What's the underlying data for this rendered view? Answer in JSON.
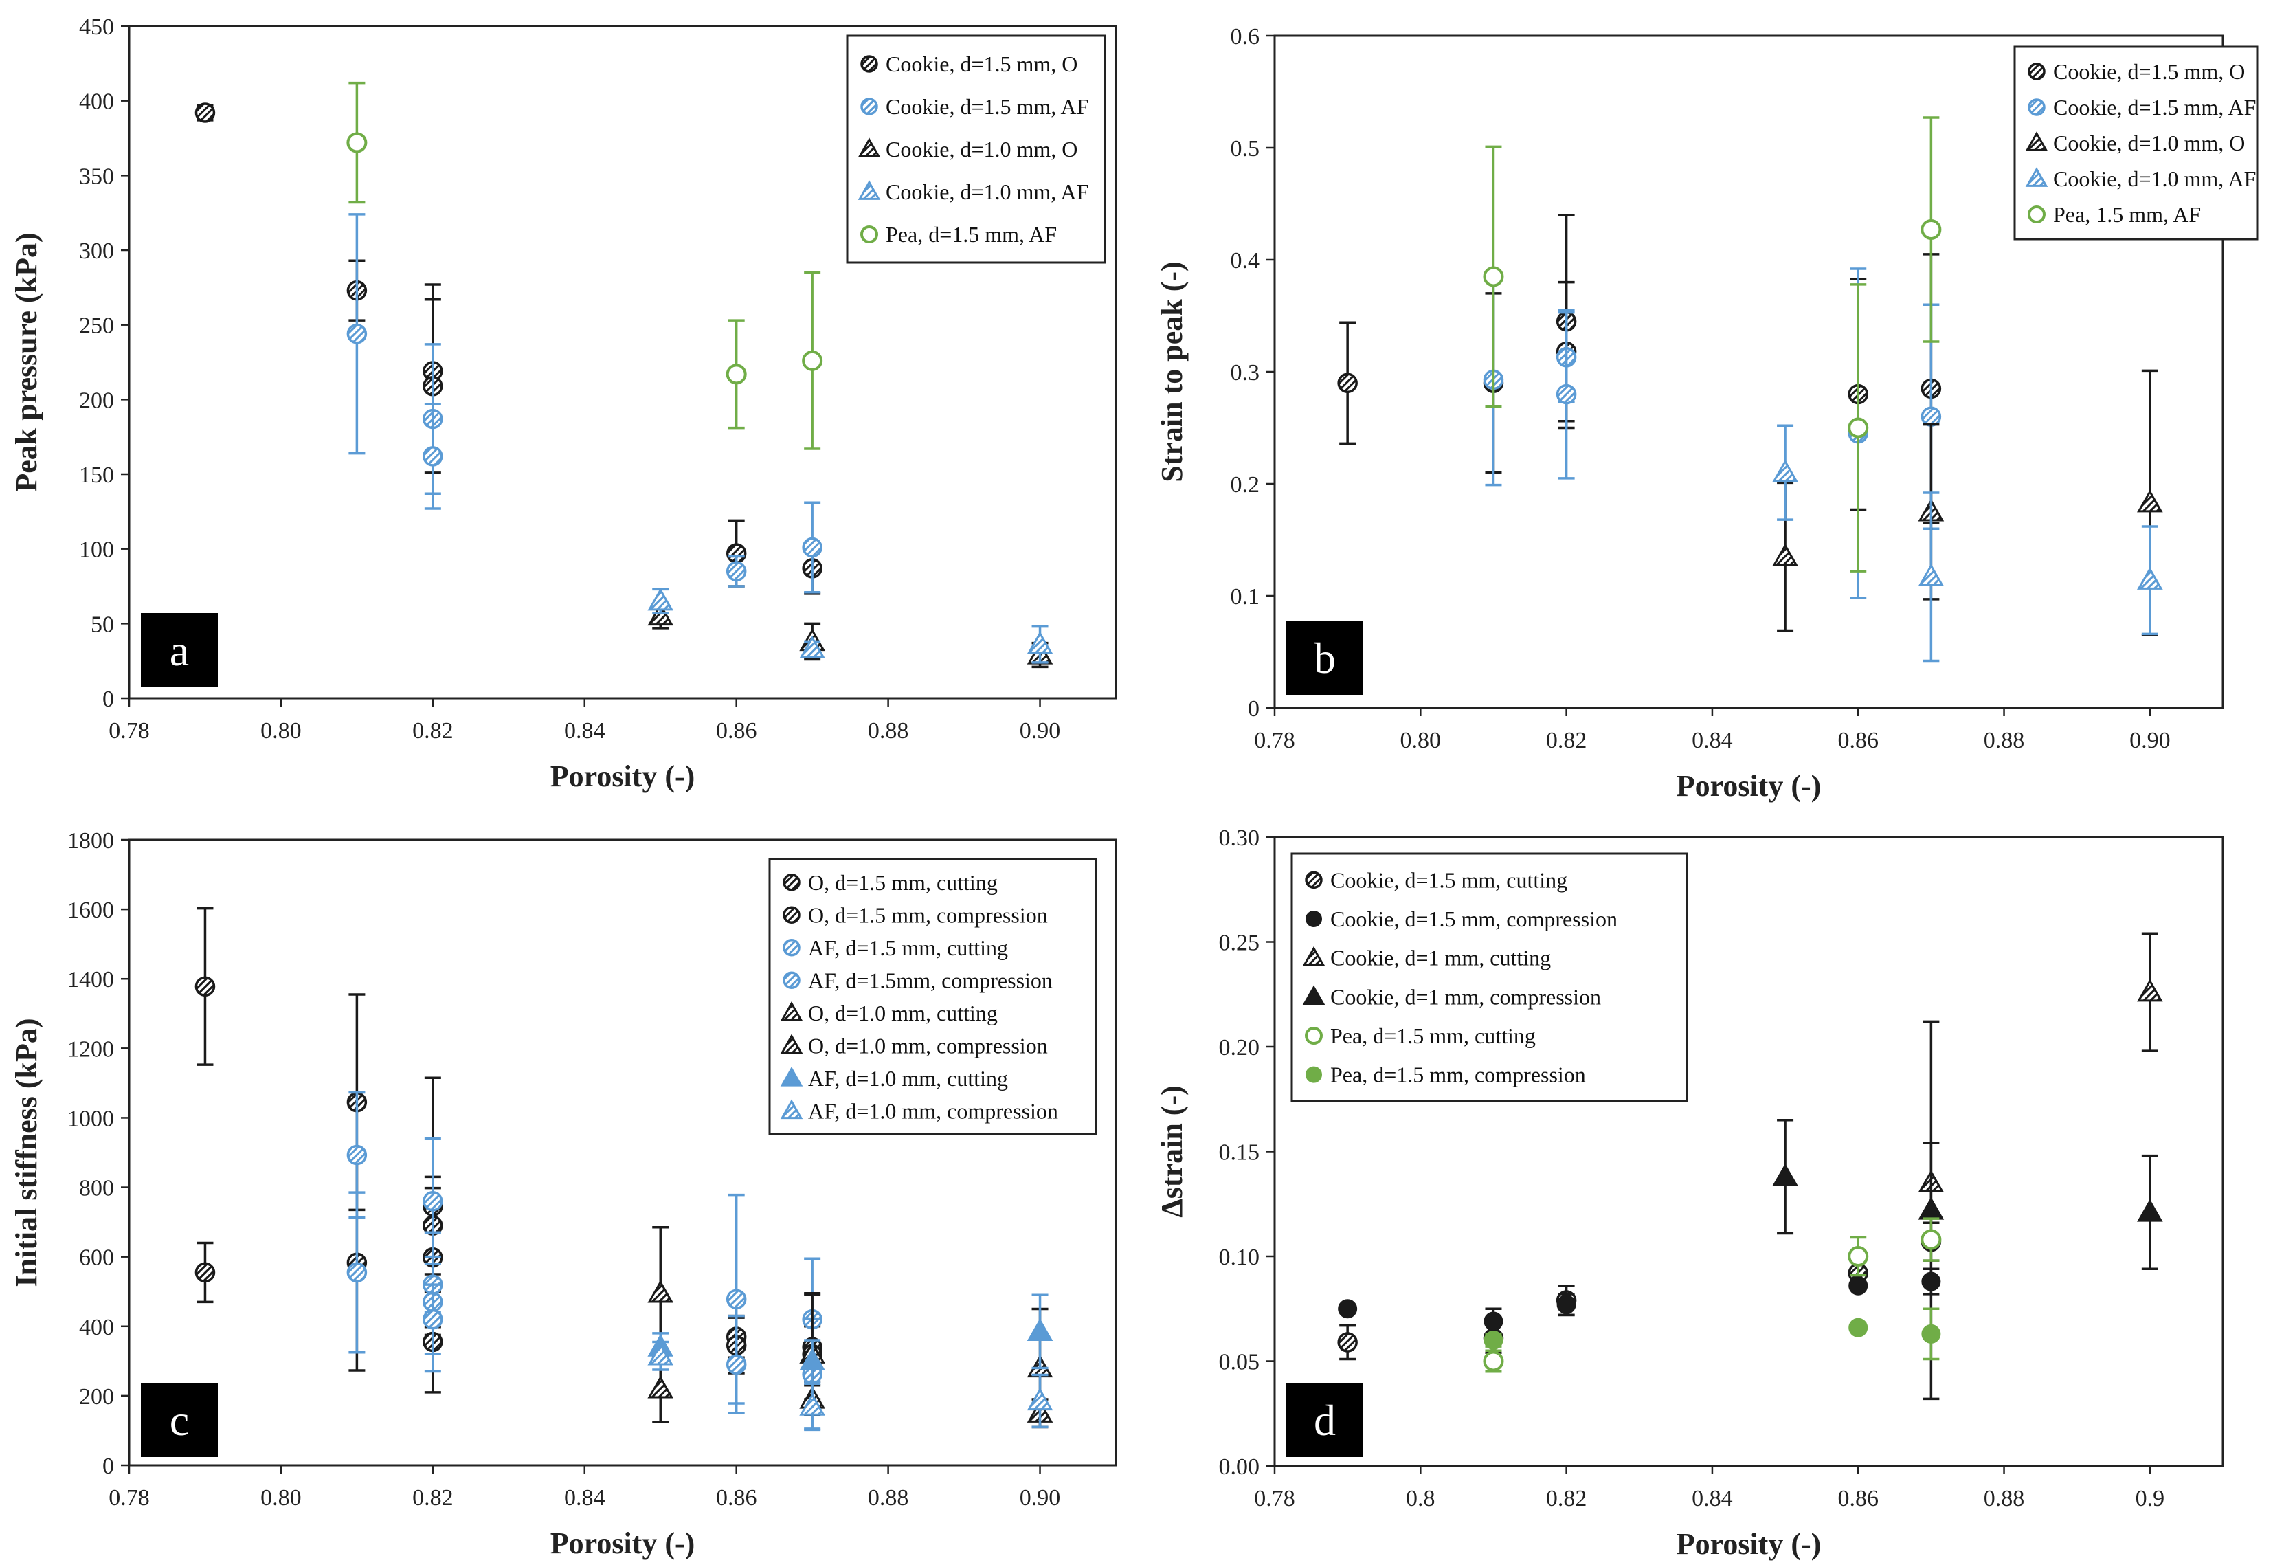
{
  "colors": {
    "black": "#1a1a1a",
    "blue": "#5b9bd5",
    "green": "#70ad47"
  },
  "chart_data": [
    {
      "panel": "a",
      "type": "scatter",
      "xlabel": "Porosity (-)",
      "ylabel": "Peak pressure (kPa)",
      "xlim": [
        0.78,
        0.91
      ],
      "ylim": [
        0,
        450
      ],
      "xticks": [
        0.78,
        0.8,
        0.82,
        0.84,
        0.86,
        0.88,
        0.9
      ],
      "xtick_labels": [
        "0.78",
        "0.80",
        "0.82",
        "0.84",
        "0.86",
        "0.88",
        "0.90"
      ],
      "yticks": [
        0,
        50,
        100,
        150,
        200,
        250,
        300,
        350,
        400,
        450
      ],
      "ytick_labels": [
        "0",
        "50",
        "100",
        "150",
        "200",
        "250",
        "300",
        "350",
        "400",
        "450"
      ],
      "legend_position": "top-right",
      "series": [
        {
          "name": "Cookie, d=1.5 mm, O",
          "marker": "circle-x",
          "color": "black",
          "points": [
            [
              0.79,
              392,
              5
            ],
            [
              0.81,
              273,
              20
            ],
            [
              0.82,
              219,
              58
            ],
            [
              0.82,
              209,
              58
            ],
            [
              0.86,
              97,
              22
            ],
            [
              0.87,
              87,
              17
            ]
          ]
        },
        {
          "name": "Cookie, d=1.5 mm, AF",
          "marker": "circle-x",
          "color": "blue",
          "points": [
            [
              0.81,
              244,
              80
            ],
            [
              0.82,
              187,
              50
            ],
            [
              0.82,
              162,
              35
            ],
            [
              0.86,
              85,
              10
            ],
            [
              0.87,
              101,
              30
            ]
          ]
        },
        {
          "name": "Cookie, d=1.0 mm, O",
          "marker": "triangle-hatch",
          "color": "black",
          "points": [
            [
              0.85,
              55,
              8
            ],
            [
              0.87,
              38,
              12
            ],
            [
              0.9,
              29,
              8
            ]
          ]
        },
        {
          "name": "Cookie, d=1.0 mm, AF",
          "marker": "triangle",
          "color": "blue",
          "points": [
            [
              0.85,
              65,
              8
            ],
            [
              0.87,
              33,
              5
            ],
            [
              0.9,
              36,
              12
            ]
          ]
        },
        {
          "name": "Pea, d=1.5 mm, AF",
          "marker": "open-circle",
          "color": "green",
          "points": [
            [
              0.81,
              372,
              40
            ],
            [
              0.86,
              217,
              36
            ],
            [
              0.87,
              226,
              59
            ]
          ]
        }
      ]
    },
    {
      "panel": "b",
      "type": "scatter",
      "xlabel": "Porosity (-)",
      "ylabel": "Strain to peak (-)",
      "xlim": [
        0.78,
        0.91
      ],
      "ylim": [
        0,
        0.6
      ],
      "xticks": [
        0.78,
        0.8,
        0.82,
        0.84,
        0.86,
        0.88,
        0.9
      ],
      "xtick_labels": [
        "0.78",
        "0.80",
        "0.82",
        "0.84",
        "0.86",
        "0.88",
        "0.90"
      ],
      "yticks": [
        0,
        0.1,
        0.2,
        0.3,
        0.4,
        0.5,
        0.6
      ],
      "ytick_labels": [
        "0",
        "0.1",
        "0.2",
        "0.3",
        "0.4",
        "0.5",
        "0.6"
      ],
      "legend_position": "top-right",
      "series": [
        {
          "name": "Cookie, d=1.5 mm, O",
          "marker": "circle-x",
          "color": "black",
          "points": [
            [
              0.79,
              0.29,
              0.054
            ],
            [
              0.81,
              0.29,
              0.08
            ],
            [
              0.82,
              0.345,
              0.095
            ],
            [
              0.82,
              0.318,
              0.062
            ],
            [
              0.86,
              0.28,
              0.103
            ],
            [
              0.87,
              0.285,
              0.12
            ]
          ]
        },
        {
          "name": "Cookie, d=1.5 mm, AF",
          "marker": "circle-x",
          "color": "blue",
          "points": [
            [
              0.81,
              0.293,
              0.094
            ],
            [
              0.82,
              0.313,
              0.04
            ],
            [
              0.82,
              0.28,
              0.075
            ],
            [
              0.86,
              0.245,
              0.147
            ],
            [
              0.87,
              0.26,
              0.1
            ]
          ]
        },
        {
          "name": "Cookie, d=1.0 mm, O",
          "marker": "triangle-hatch",
          "color": "black",
          "points": [
            [
              0.85,
              0.135,
              0.066
            ],
            [
              0.87,
              0.175,
              0.078
            ],
            [
              0.9,
              0.183,
              0.118
            ]
          ]
        },
        {
          "name": "Cookie, d=1.0 mm, AF",
          "marker": "triangle",
          "color": "blue",
          "points": [
            [
              0.85,
              0.21,
              0.042
            ],
            [
              0.87,
              0.117,
              0.075
            ],
            [
              0.9,
              0.114,
              0.048
            ]
          ]
        },
        {
          "name": "Pea, 1.5 mm, AF",
          "marker": "open-circle",
          "color": "green",
          "points": [
            [
              0.81,
              0.385,
              0.116
            ],
            [
              0.86,
              0.25,
              0.128
            ],
            [
              0.87,
              0.427,
              0.1
            ]
          ]
        }
      ]
    },
    {
      "panel": "c",
      "type": "scatter",
      "xlabel": "Porosity (-)",
      "ylabel": "Initial stiffness (kPa)",
      "xlim": [
        0.78,
        0.91
      ],
      "ylim": [
        0,
        1800
      ],
      "xticks": [
        0.78,
        0.8,
        0.82,
        0.84,
        0.86,
        0.88,
        0.9
      ],
      "xtick_labels": [
        "0.78",
        "0.80",
        "0.82",
        "0.84",
        "0.86",
        "0.88",
        "0.90"
      ],
      "yticks": [
        0,
        200,
        400,
        600,
        800,
        1000,
        1200,
        1400,
        1600,
        1800
      ],
      "ytick_labels": [
        "0",
        "200",
        "400",
        "600",
        "800",
        "1000",
        "1200",
        "1400",
        "1600",
        "1800"
      ],
      "legend_position": "top-right",
      "series": [
        {
          "name": "O, d=1.5 mm, cutting",
          "marker": "circle-x",
          "color": "black",
          "points": [
            [
              0.81,
              1045,
              310
            ],
            [
              0.82,
              745,
              370
            ],
            [
              0.82,
              598,
              200
            ],
            [
              0.86,
              370,
              60
            ],
            [
              0.87,
              340,
              150
            ]
          ]
        },
        {
          "name": "O, d=1.5 mm, compression",
          "marker": "circle-slash",
          "color": "black",
          "points": [
            [
              0.79,
              1378,
              225
            ],
            [
              0.79,
              555,
              85
            ],
            [
              0.81,
              583,
              310
            ],
            [
              0.82,
              690,
              140
            ],
            [
              0.82,
              355,
              145
            ],
            [
              0.86,
              345,
              80
            ],
            [
              0.87,
              320,
              80
            ]
          ]
        },
        {
          "name": "AF, d=1.5 mm, cutting",
          "marker": "circle-x",
          "color": "blue",
          "points": [
            [
              0.81,
              893,
              180
            ],
            [
              0.82,
              760,
              180
            ],
            [
              0.82,
              470,
              200
            ],
            [
              0.86,
              478,
              300
            ],
            [
              0.87,
              420,
              175
            ]
          ]
        },
        {
          "name": "AF, d=1.5mm, compression",
          "marker": "circle-slash",
          "color": "blue",
          "points": [
            [
              0.81,
              555,
              230
            ],
            [
              0.82,
              520,
              80
            ],
            [
              0.82,
              420,
              100
            ],
            [
              0.86,
              290,
              140
            ],
            [
              0.87,
              262,
              160
            ]
          ]
        },
        {
          "name": "O, d=1.0 mm, cutting",
          "marker": "triangle-hatch",
          "color": "black",
          "points": [
            [
              0.85,
              495,
              190
            ],
            [
              0.87,
              320,
              175
            ],
            [
              0.9,
              280,
              170
            ]
          ]
        },
        {
          "name": "O, d=1.0 mm, compression",
          "marker": "triangle-hatch",
          "color": "black",
          "points": [
            [
              0.85,
              220,
              95
            ],
            [
              0.87,
              190,
              40
            ],
            [
              0.9,
              150,
              40
            ]
          ]
        },
        {
          "name": "AF, d=1.0 mm, cutting",
          "marker": "triangle-filled",
          "color": "blue",
          "points": [
            [
              0.85,
              340,
              40
            ],
            [
              0.87,
              300,
              60
            ],
            [
              0.9,
              385,
              105
            ]
          ]
        },
        {
          "name": "AF, d=1.0 mm, compression",
          "marker": "triangle",
          "color": "blue",
          "points": [
            [
              0.85,
              315,
              40
            ],
            [
              0.87,
              170,
              65
            ],
            [
              0.9,
              185,
              75
            ]
          ]
        }
      ]
    },
    {
      "panel": "d",
      "type": "scatter",
      "xlabel": "Porosity (-)",
      "ylabel": "Δstrain (-)",
      "xlim": [
        0.78,
        0.91
      ],
      "ylim": [
        0,
        0.3
      ],
      "xticks": [
        0.78,
        0.8,
        0.82,
        0.84,
        0.86,
        0.88,
        0.9
      ],
      "xtick_labels": [
        "0.78",
        "0.8",
        "0.82",
        "0.84",
        "0.86",
        "0.88",
        "0.9"
      ],
      "yticks": [
        0,
        0.05,
        0.1,
        0.15,
        0.2,
        0.25,
        0.3
      ],
      "ytick_labels": [
        "0.00",
        "0.05",
        "0.10",
        "0.15",
        "0.20",
        "0.25",
        "0.30"
      ],
      "legend_position": "top-left",
      "series": [
        {
          "name": "Cookie, d=1.5 mm, cutting",
          "marker": "circle-x",
          "color": "black",
          "points": [
            [
              0.79,
              0.059,
              0.008
            ],
            [
              0.81,
              0.061,
              0.007
            ],
            [
              0.82,
              0.079,
              0.007
            ],
            [
              0.86,
              0.092,
              0.008
            ],
            [
              0.87,
              0.107,
              0.009
            ]
          ]
        },
        {
          "name": "Cookie, d=1.5 mm, compression",
          "marker": "filled-circle",
          "color": "black",
          "points": [
            [
              0.79,
              0.075,
              0
            ],
            [
              0.81,
              0.069,
              0.006
            ],
            [
              0.82,
              0.077,
              0.005
            ],
            [
              0.86,
              0.086,
              0
            ],
            [
              0.87,
              0.088,
              0.006
            ]
          ]
        },
        {
          "name": "Cookie, d=1 mm, cutting",
          "marker": "triangle-hatch",
          "color": "black",
          "points": [
            [
              0.9,
              0.226,
              0.028
            ],
            [
              0.87,
              0.135,
              0.019
            ]
          ]
        },
        {
          "name": "Cookie, d=1 mm, compression",
          "marker": "triangle-filled",
          "color": "black",
          "points": [
            [
              0.85,
              0.138,
              0.027
            ],
            [
              0.87,
              0.122,
              0.09
            ],
            [
              0.9,
              0.121,
              0.027
            ]
          ]
        },
        {
          "name": "Pea, d=1.5 mm, cutting",
          "marker": "open-circle",
          "color": "green",
          "points": [
            [
              0.81,
              0.05,
              0.005
            ],
            [
              0.86,
              0.1,
              0.009
            ],
            [
              0.87,
              0.108,
              0.01
            ]
          ]
        },
        {
          "name": "Pea, d=1.5 mm, compression",
          "marker": "filled-circle",
          "color": "green",
          "points": [
            [
              0.81,
              0.06,
              0.003
            ],
            [
              0.86,
              0.066,
              0.002
            ],
            [
              0.87,
              0.063,
              0.012
            ]
          ]
        }
      ]
    }
  ]
}
